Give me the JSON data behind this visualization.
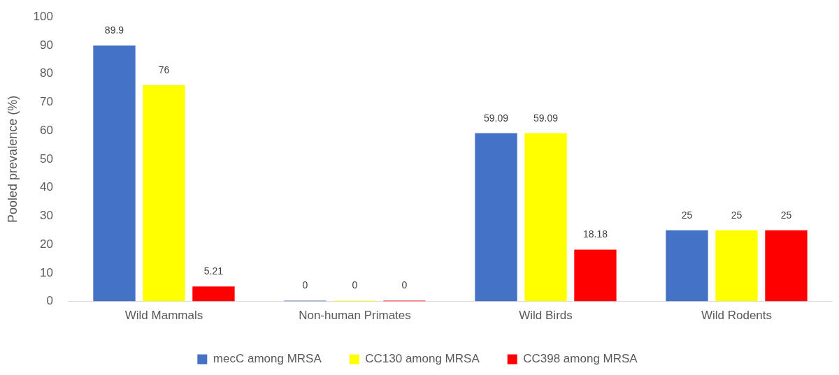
{
  "chart_data": {
    "type": "bar",
    "ylabel": "Pooled prevalence (%)",
    "categories": [
      "Wild Mammals",
      "Non-human Primates",
      "Wild Birds",
      "Wild Rodents"
    ],
    "series": [
      {
        "name": "mecC among MRSA",
        "color": "#4472c4",
        "values": [
          89.9,
          0,
          59.09,
          25
        ]
      },
      {
        "name": "CC130 among MRSA",
        "color": "#ffff00",
        "values": [
          76,
          0,
          59.09,
          25
        ]
      },
      {
        "name": "CC398 among MRSA",
        "color": "#ff0000",
        "values": [
          5.21,
          0,
          18.18,
          25
        ]
      }
    ],
    "ylim": [
      0,
      100
    ],
    "yticks": [
      0,
      10,
      20,
      30,
      40,
      50,
      60,
      70,
      80,
      90,
      100
    ],
    "grid": false,
    "legend": "bottom",
    "data_labels": true
  }
}
